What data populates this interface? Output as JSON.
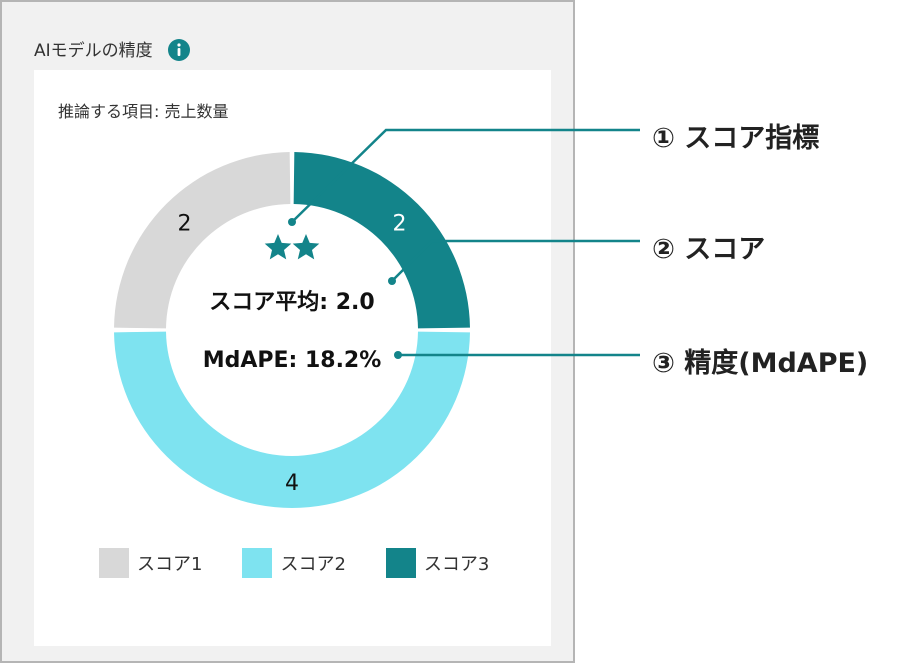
{
  "panel": {
    "title": "AIモデルの精度",
    "info_icon": "info-icon",
    "subtitle": "推論する項目: 売上数量"
  },
  "center": {
    "star_icon": "star-icon",
    "stars": 2,
    "score_text": "スコア平均: 2.0",
    "mdape_text": "MdAPE: 18.2%"
  },
  "chart_data": {
    "type": "pie",
    "donut": true,
    "categories": [
      "スコア1",
      "スコア2",
      "スコア3"
    ],
    "values": [
      2,
      4,
      2
    ],
    "colors": [
      "#d8d8d8",
      "#7ee3f0",
      "#13848a"
    ],
    "legend_position": "bottom"
  },
  "callouts": [
    {
      "label": "① スコア指標"
    },
    {
      "label": "② スコア"
    },
    {
      "label": "③ 精度(MdAPE)"
    }
  ],
  "colors": {
    "accent": "#13848a",
    "panel_bg": "#f1f1f1",
    "card_bg": "#ffffff"
  }
}
